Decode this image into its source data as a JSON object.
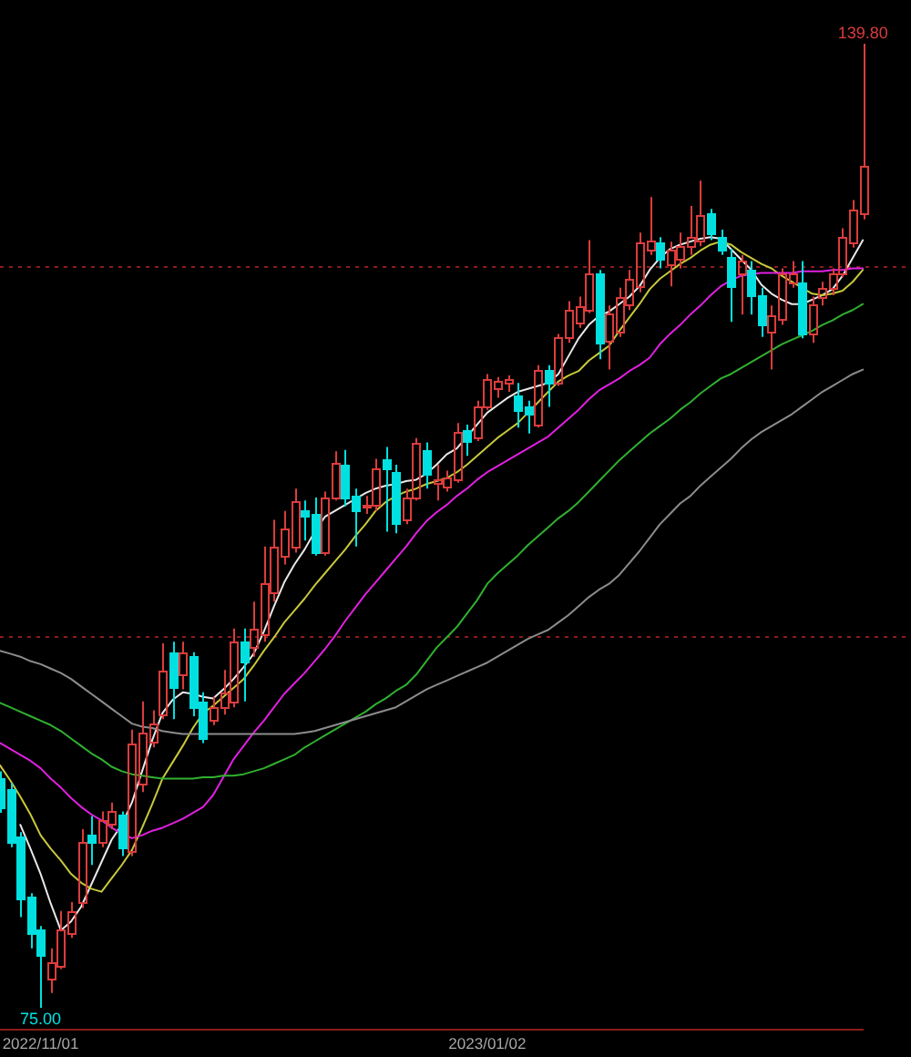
{
  "chart_data": {
    "type": "candlestick",
    "categories": [
      null,
      null,
      null,
      null,
      "2022/11/01",
      null,
      null,
      null,
      null,
      null,
      null,
      null,
      null,
      null,
      null,
      null,
      null,
      null,
      null,
      null,
      null,
      null,
      null,
      null,
      null,
      null,
      null,
      null,
      null,
      null,
      null,
      null,
      null,
      null,
      null,
      null,
      null,
      null,
      null,
      null,
      null,
      null,
      null,
      null,
      null,
      null,
      null,
      null,
      "2023/01/02",
      null,
      null,
      null,
      null,
      null,
      null,
      null,
      null,
      null,
      null,
      null,
      null,
      null,
      null,
      null,
      null,
      null,
      null,
      null,
      null,
      null,
      null,
      null,
      null,
      null,
      null,
      null,
      null,
      null,
      null,
      null,
      null,
      null,
      null,
      null,
      null,
      null
    ],
    "ohlc": [
      [
        90.4,
        90.9,
        88.1,
        88.5
      ],
      [
        89.7,
        90.1,
        85.8,
        86.1
      ],
      [
        86.5,
        86.8,
        81.1,
        82.3
      ],
      [
        82.5,
        82.7,
        79.0,
        80.0
      ],
      [
        80.3,
        80.5,
        75.0,
        78.6
      ],
      [
        77.0,
        79.0,
        76.0,
        78.1
      ],
      [
        77.8,
        81.5,
        77.6,
        80.3
      ],
      [
        80.0,
        82.1,
        79.7,
        81.5
      ],
      [
        82.1,
        87.0,
        81.7,
        86.1
      ],
      [
        86.6,
        87.9,
        84.6,
        86.1
      ],
      [
        86.1,
        88.2,
        85.8,
        87.6
      ],
      [
        87.4,
        88.8,
        87.0,
        88.2
      ],
      [
        88.0,
        88.2,
        85.2,
        85.8
      ],
      [
        85.5,
        93.7,
        85.2,
        92.8
      ],
      [
        90.1,
        95.6,
        89.5,
        93.5
      ],
      [
        92.9,
        95.0,
        92.5,
        94.1
      ],
      [
        94.7,
        99.5,
        94.4,
        97.7
      ],
      [
        98.9,
        99.6,
        94.4,
        96.6
      ],
      [
        97.4,
        99.6,
        96.4,
        98.9
      ],
      [
        98.6,
        98.9,
        94.6,
        95.2
      ],
      [
        95.6,
        96.2,
        92.8,
        93.1
      ],
      [
        94.4,
        95.9,
        94.0,
        95.2
      ],
      [
        95.2,
        97.7,
        94.7,
        96.2
      ],
      [
        95.6,
        100.5,
        95.2,
        99.6
      ],
      [
        99.6,
        100.5,
        95.6,
        98.3
      ],
      [
        99.3,
        102.3,
        98.6,
        100.5
      ],
      [
        100.1,
        106.0,
        99.6,
        103.5
      ],
      [
        102.9,
        107.8,
        102.3,
        106.0
      ],
      [
        105.4,
        108.4,
        104.8,
        107.2
      ],
      [
        106.0,
        109.9,
        105.6,
        109.1
      ],
      [
        108.4,
        109.1,
        106.4,
        108.1
      ],
      [
        108.2,
        109.3,
        105.4,
        105.6
      ],
      [
        105.6,
        109.7,
        105.4,
        109.3
      ],
      [
        109.3,
        112.4,
        109.1,
        111.6
      ],
      [
        111.5,
        112.5,
        108.7,
        109.3
      ],
      [
        109.4,
        109.9,
        106.0,
        108.4
      ],
      [
        108.7,
        109.4,
        108.2,
        108.8
      ],
      [
        108.8,
        111.9,
        108.4,
        111.3
      ],
      [
        111.9,
        112.7,
        107.0,
        111.3
      ],
      [
        111.0,
        111.5,
        106.9,
        107.6
      ],
      [
        107.8,
        109.9,
        107.5,
        109.3
      ],
      [
        109.3,
        113.3,
        109.1,
        113.0
      ],
      [
        112.5,
        113.0,
        109.9,
        110.9
      ],
      [
        110.3,
        111.5,
        109.1,
        110.5
      ],
      [
        110.0,
        111.1,
        109.7,
        110.6
      ],
      [
        110.5,
        114.3,
        110.3,
        113.7
      ],
      [
        113.8,
        114.2,
        112.1,
        113.1
      ],
      [
        113.3,
        115.8,
        113.1,
        115.4
      ],
      [
        115.4,
        117.6,
        115.2,
        117.3
      ],
      [
        116.6,
        117.4,
        116.0,
        117.1
      ],
      [
        117.0,
        117.5,
        116.4,
        117.3
      ],
      [
        116.2,
        117.0,
        114.0,
        115.2
      ],
      [
        115.4,
        115.8,
        113.6,
        114.9
      ],
      [
        114.2,
        118.2,
        114.0,
        117.9
      ],
      [
        117.9,
        118.2,
        115.4,
        117.0
      ],
      [
        117.0,
        120.3,
        116.8,
        120.1
      ],
      [
        120.1,
        122.5,
        119.7,
        121.9
      ],
      [
        121.1,
        122.8,
        120.7,
        122.2
      ],
      [
        121.9,
        126.6,
        121.7,
        124.4
      ],
      [
        124.4,
        124.6,
        118.6,
        119.7
      ],
      [
        119.8,
        122.2,
        117.9,
        121.7
      ],
      [
        120.4,
        123.4,
        120.1,
        122.8
      ],
      [
        122.3,
        124.6,
        121.9,
        124.0
      ],
      [
        123.5,
        127.1,
        123.1,
        126.5
      ],
      [
        126.0,
        129.5,
        125.6,
        126.6
      ],
      [
        126.5,
        126.8,
        124.7,
        125.3
      ],
      [
        125.0,
        126.5,
        123.5,
        126.0
      ],
      [
        125.3,
        127.1,
        124.7,
        126.2
      ],
      [
        126.2,
        128.9,
        125.6,
        126.8
      ],
      [
        126.6,
        130.6,
        126.2,
        128.3
      ],
      [
        128.4,
        128.7,
        126.6,
        127.1
      ],
      [
        126.8,
        127.3,
        125.6,
        126.0
      ],
      [
        125.5,
        126.0,
        121.1,
        123.5
      ],
      [
        124.4,
        125.6,
        121.6,
        125.2
      ],
      [
        124.6,
        125.2,
        121.6,
        122.9
      ],
      [
        122.9,
        123.4,
        120.1,
        120.9
      ],
      [
        120.4,
        122.2,
        117.9,
        121.6
      ],
      [
        121.3,
        124.7,
        120.9,
        124.4
      ],
      [
        123.8,
        125.2,
        123.4,
        124.4
      ],
      [
        123.8,
        125.2,
        120.0,
        120.3
      ],
      [
        120.3,
        122.8,
        119.7,
        122.3
      ],
      [
        122.8,
        123.8,
        122.2,
        123.4
      ],
      [
        123.4,
        124.7,
        122.9,
        124.4
      ],
      [
        124.4,
        127.4,
        124.1,
        126.8
      ],
      [
        126.5,
        129.3,
        126.1,
        128.7
      ],
      [
        128.4,
        139.8,
        128.0,
        131.6
      ]
    ],
    "colors": [
      "#00e0e0",
      "#00e0e0",
      "#00e0e0",
      "#00e0e0",
      "#00e0e0",
      "#dc3c3c",
      "#dc3c3c",
      "#dc3c3c",
      "#dc3c3c",
      "#00e0e0",
      "#dc3c3c",
      "#dc3c3c",
      "#00e0e0",
      "#dc3c3c",
      "#dc3c3c",
      "#dc3c3c",
      "#dc3c3c",
      "#00e0e0",
      "#dc3c3c",
      "#00e0e0",
      "#00e0e0",
      "#dc3c3c",
      "#dc3c3c",
      "#dc3c3c",
      "#00e0e0",
      "#dc3c3c",
      "#dc3c3c",
      "#dc3c3c",
      "#dc3c3c",
      "#dc3c3c",
      "#00e0e0",
      "#00e0e0",
      "#dc3c3c",
      "#dc3c3c",
      "#00e0e0",
      "#00e0e0",
      "#dc3c3c",
      "#dc3c3c",
      "#00e0e0",
      "#00e0e0",
      "#dc3c3c",
      "#dc3c3c",
      "#00e0e0",
      "#dc3c3c",
      "#dc3c3c",
      "#dc3c3c",
      "#00e0e0",
      "#dc3c3c",
      "#dc3c3c",
      "#dc3c3c",
      "#dc3c3c",
      "#00e0e0",
      "#00e0e0",
      "#dc3c3c",
      "#00e0e0",
      "#dc3c3c",
      "#dc3c3c",
      "#dc3c3c",
      "#dc3c3c",
      "#00e0e0",
      "#dc3c3c",
      "#dc3c3c",
      "#dc3c3c",
      "#dc3c3c",
      "#dc3c3c",
      "#00e0e0",
      "#dc3c3c",
      "#dc3c3c",
      "#dc3c3c",
      "#dc3c3c",
      "#00e0e0",
      "#00e0e0",
      "#00e0e0",
      "#dc3c3c",
      "#00e0e0",
      "#00e0e0",
      "#dc3c3c",
      "#dc3c3c",
      "#dc3c3c",
      "#00e0e0",
      "#dc3c3c",
      "#dc3c3c",
      "#dc3c3c",
      "#dc3c3c",
      "#dc3c3c",
      "#dc3c3c"
    ],
    "series": [
      {
        "type": "line",
        "color": "#8c8c8c",
        "values": [
          99.0,
          98.8,
          98.6,
          98.3,
          98.1,
          97.8,
          97.5,
          97.1,
          96.6,
          96.1,
          95.6,
          95.1,
          94.6,
          94.1,
          93.9,
          93.8,
          93.6,
          93.5,
          93.4,
          93.4,
          93.4,
          93.4,
          93.4,
          93.4,
          93.4,
          93.4,
          93.4,
          93.4,
          93.4,
          93.4,
          93.5,
          93.6,
          93.8,
          94.0,
          94.2,
          94.4,
          94.6,
          94.8,
          95.0,
          95.2,
          95.6,
          96.0,
          96.4,
          96.7,
          97.0,
          97.3,
          97.6,
          97.9,
          98.2,
          98.6,
          99.0,
          99.4,
          99.8,
          100.1,
          100.4,
          100.9,
          101.4,
          102.0,
          102.6,
          103.1,
          103.5,
          104.1,
          104.9,
          105.7,
          106.6,
          107.5,
          108.2,
          108.9,
          109.4,
          110.1,
          110.7,
          111.3,
          111.9,
          112.6,
          113.2,
          113.7,
          114.1,
          114.5,
          114.9,
          115.4,
          115.9,
          116.4,
          116.8,
          117.2,
          117.6,
          117.9
        ]
      },
      {
        "type": "line",
        "color": "#30b030",
        "values": [
          95.5,
          95.2,
          94.9,
          94.6,
          94.3,
          94.0,
          93.6,
          93.1,
          92.6,
          92.1,
          91.7,
          91.2,
          90.9,
          90.7,
          90.6,
          90.5,
          90.4,
          90.4,
          90.4,
          90.4,
          90.5,
          90.5,
          90.6,
          90.6,
          90.7,
          90.9,
          91.1,
          91.4,
          91.7,
          92.0,
          92.5,
          92.9,
          93.3,
          93.7,
          94.1,
          94.5,
          94.9,
          95.4,
          95.8,
          96.3,
          96.7,
          97.4,
          98.3,
          99.2,
          99.9,
          100.6,
          101.5,
          102.4,
          103.5,
          104.2,
          104.8,
          105.4,
          106.1,
          106.7,
          107.3,
          107.9,
          108.4,
          109.0,
          109.7,
          110.4,
          111.1,
          111.8,
          112.4,
          113.0,
          113.6,
          114.1,
          114.6,
          115.2,
          115.7,
          116.3,
          116.8,
          117.3,
          117.6,
          118.0,
          118.4,
          118.8,
          119.2,
          119.6,
          119.9,
          120.2,
          120.5,
          120.9,
          121.2,
          121.6,
          121.9,
          122.3
        ]
      },
      {
        "type": "line",
        "color": "#e020e0",
        "values": [
          92.8,
          92.4,
          92.0,
          91.6,
          91.1,
          90.4,
          89.8,
          89.1,
          88.5,
          88.0,
          87.6,
          87.1,
          86.7,
          86.4,
          86.6,
          86.9,
          87.1,
          87.4,
          87.7,
          88.1,
          88.5,
          89.3,
          90.5,
          91.7,
          92.6,
          93.5,
          94.3,
          95.2,
          96.1,
          96.8,
          97.5,
          98.3,
          99.1,
          100.0,
          101.0,
          101.9,
          102.8,
          103.6,
          104.4,
          105.2,
          106.0,
          106.9,
          107.7,
          108.3,
          108.8,
          109.4,
          109.9,
          110.5,
          111.0,
          111.4,
          111.8,
          112.2,
          112.6,
          113.0,
          113.4,
          114.0,
          114.6,
          115.2,
          115.9,
          116.5,
          116.9,
          117.3,
          117.8,
          118.2,
          118.7,
          119.6,
          120.3,
          120.9,
          121.6,
          122.2,
          122.9,
          123.5,
          123.9,
          124.2,
          124.3,
          124.4,
          124.4,
          124.4,
          124.4,
          124.5,
          124.5,
          124.5,
          124.6,
          124.6,
          124.7,
          124.7
        ]
      },
      {
        "type": "line",
        "color": "#c8c83c",
        "values": [
          91.3,
          90.3,
          89.2,
          88.0,
          86.6,
          85.7,
          84.9,
          84.0,
          83.4,
          83.0,
          82.8,
          83.7,
          84.6,
          85.6,
          87.1,
          88.7,
          90.4,
          91.5,
          92.6,
          93.8,
          94.8,
          95.3,
          95.9,
          96.5,
          97.1,
          98.0,
          99.0,
          99.9,
          100.9,
          101.7,
          102.5,
          103.4,
          104.2,
          105.0,
          105.8,
          106.7,
          107.5,
          108.4,
          109.0,
          109.4,
          109.7,
          109.9,
          110.2,
          110.4,
          110.6,
          111.0,
          111.5,
          112.1,
          112.7,
          113.3,
          113.8,
          114.3,
          115.0,
          115.7,
          116.4,
          117.1,
          117.5,
          117.8,
          118.5,
          119.0,
          119.5,
          120.5,
          121.4,
          122.3,
          123.3,
          124.0,
          124.5,
          125.0,
          125.4,
          125.9,
          126.3,
          126.5,
          126.3,
          125.8,
          125.4,
          125.0,
          124.7,
          124.2,
          123.8,
          123.4,
          123.0,
          122.9,
          123.0,
          123.2,
          123.8,
          124.6
        ]
      },
      {
        "type": "line",
        "color": "#e8e8e8",
        "values": [
          null,
          null,
          87.3,
          85.7,
          84.0,
          82.0,
          80.2,
          80.8,
          81.8,
          83.3,
          84.8,
          86.3,
          87.3,
          88.8,
          90.9,
          93.0,
          94.8,
          95.7,
          96.2,
          96.1,
          95.9,
          95.8,
          96.4,
          97.1,
          97.9,
          98.8,
          100.3,
          102.0,
          103.6,
          104.8,
          105.8,
          107.0,
          108.0,
          108.4,
          108.8,
          109.2,
          109.6,
          109.9,
          110.1,
          110.2,
          110.4,
          110.5,
          110.9,
          111.5,
          112.2,
          112.6,
          113.4,
          114.2,
          115.0,
          115.5,
          116.0,
          116.4,
          116.6,
          116.8,
          117.0,
          117.6,
          118.8,
          120.0,
          120.9,
          121.5,
          121.8,
          122.3,
          122.8,
          123.5,
          124.6,
          125.4,
          126.0,
          126.3,
          126.5,
          126.7,
          126.8,
          126.7,
          126.0,
          125.3,
          124.6,
          123.6,
          123.0,
          122.6,
          122.3,
          122.3,
          122.6,
          122.9,
          123.3,
          124.2,
          125.4,
          126.6
        ]
      }
    ],
    "annotations": [
      {
        "text": "139.80",
        "y": 139.8
      },
      {
        "text": "75.00",
        "y": 75.0
      }
    ],
    "ref_lines": [
      {
        "axis": "y",
        "value": 124.9,
        "color": "#8c1c1c",
        "line_style": "dotted"
      },
      {
        "axis": "y",
        "value": 100.0,
        "color": "#8c1c1c",
        "line_style": "dotted"
      }
    ]
  }
}
